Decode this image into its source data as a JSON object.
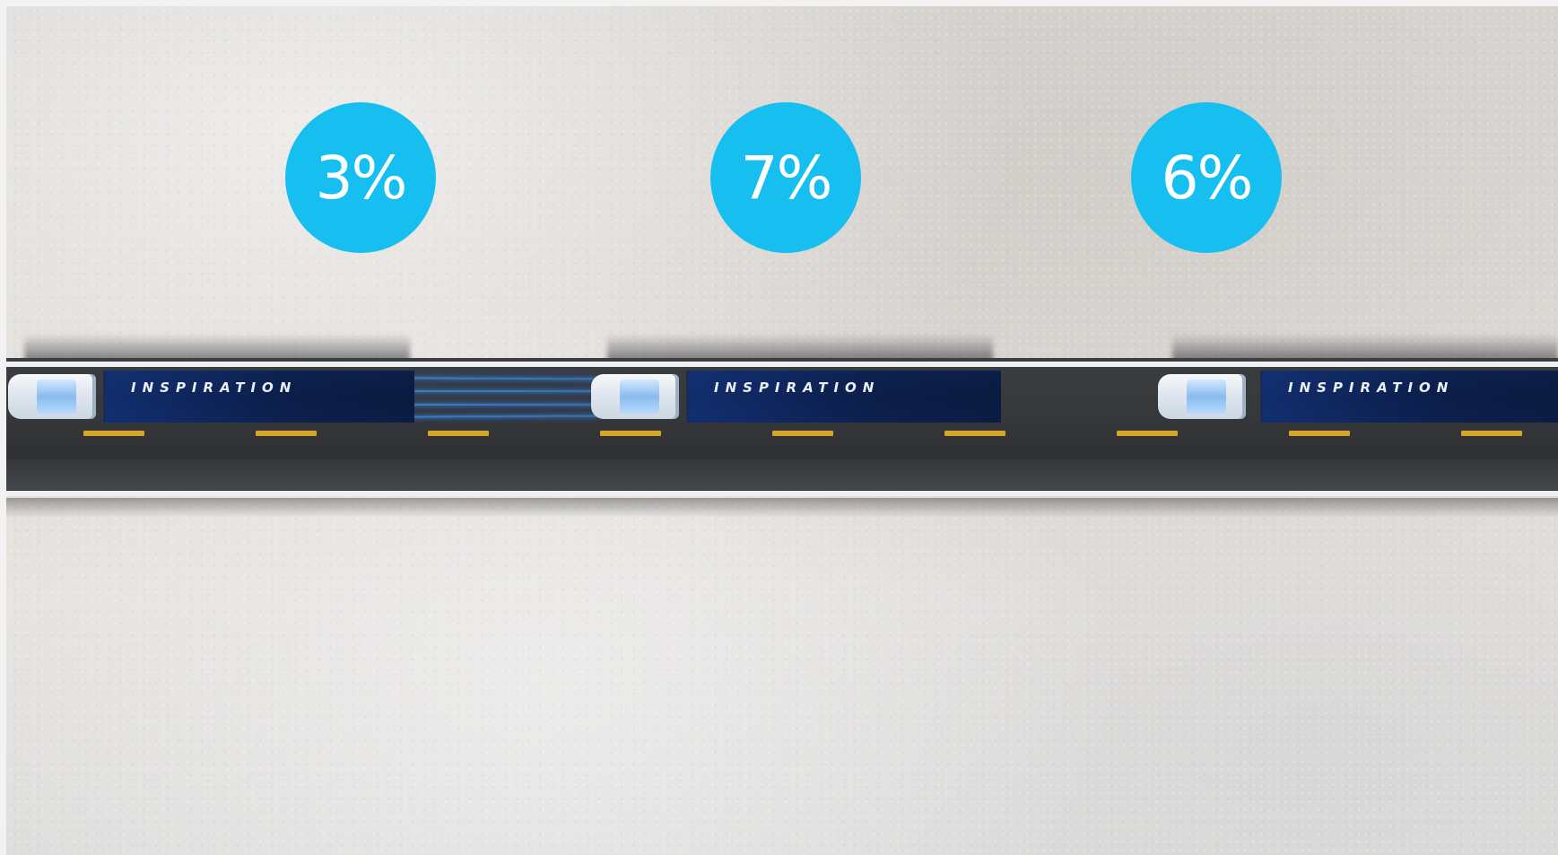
{
  "scene": {
    "description_colors": {
      "badge_bg": "#16bff0",
      "badge_text": "#ffffff",
      "trailer": "#0b1f45",
      "road": "#36383b",
      "lane_marking": "#d9a52a",
      "snow": "#e4e0dc",
      "beam": "#3c96ff"
    }
  },
  "badges": [
    {
      "value": "3%"
    },
    {
      "value": "7%"
    },
    {
      "value": "6%"
    }
  ],
  "trucks": [
    {
      "trailer_label": "INSPIRATION",
      "cab_icon": "truck-cab-icon"
    },
    {
      "trailer_label": "INSPIRATION",
      "cab_icon": "truck-cab-icon"
    },
    {
      "trailer_label": "INSPIRATION",
      "cab_icon": "truck-cab-icon"
    }
  ]
}
